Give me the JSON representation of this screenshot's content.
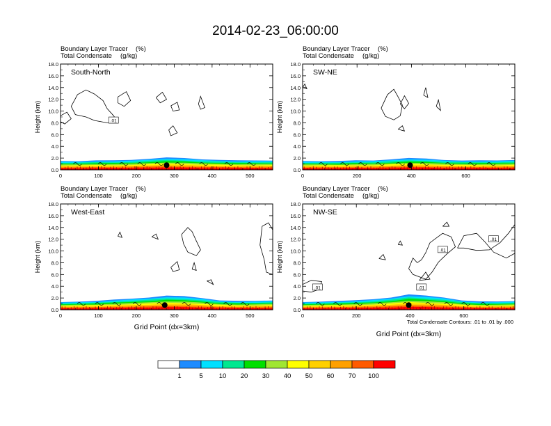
{
  "title": "2014-02-23_06:00:00",
  "chart_data": [
    {
      "type": "heatmap",
      "panel_label": "South-North",
      "subtitle_line1": "Boundary Layer Tracer",
      "subtitle_unit1": "(%)",
      "subtitle_line2": "Total Condensate",
      "subtitle_unit2": "(g/kg)",
      "ylabel": "Height (km)",
      "xlabel": "",
      "xlim": [
        0,
        560
      ],
      "ylim": [
        0,
        18
      ],
      "xticks": [
        0,
        100,
        200,
        300,
        400,
        500
      ],
      "yticks": [
        "0.0",
        "2.0",
        "4.0",
        "6.0",
        "8.0",
        "10.0",
        "12.0",
        "14.0",
        "16.0",
        "18.0"
      ],
      "tracer_top_km": [
        1.5,
        1.5,
        1.6,
        1.6,
        1.7,
        1.9,
        2.1,
        2.0,
        1.8,
        1.7,
        1.6,
        1.6,
        1.6
      ],
      "contour_labels": [
        ".01"
      ],
      "marker_x": 280
    },
    {
      "type": "heatmap",
      "panel_label": "SW-NE",
      "subtitle_line1": "Boundary Layer Tracer",
      "subtitle_unit1": "(%)",
      "subtitle_line2": "Total Condensate",
      "subtitle_unit2": "(g/kg)",
      "ylabel": "Height (km)",
      "xlabel": "",
      "xlim": [
        0,
        780
      ],
      "ylim": [
        0,
        18
      ],
      "xticks": [
        0,
        200,
        400,
        600
      ],
      "yticks": [
        "0.0",
        "2.0",
        "4.0",
        "6.0",
        "8.0",
        "10.0",
        "12.0",
        "14.0",
        "16.0",
        "18.0"
      ],
      "tracer_top_km": [
        1.5,
        1.5,
        1.5,
        1.6,
        1.6,
        1.8,
        2.0,
        1.9,
        1.7,
        1.6,
        1.6,
        1.6,
        1.7
      ],
      "contour_labels": [],
      "marker_x": 395
    },
    {
      "type": "heatmap",
      "panel_label": "West-East",
      "subtitle_line1": "Boundary Layer Tracer",
      "subtitle_unit1": "(%)",
      "subtitle_line2": "Total Condensate",
      "subtitle_unit2": "(g/kg)",
      "ylabel": "Height (km)",
      "xlabel": "Grid Point (dx=3km)",
      "xlim": [
        0,
        560
      ],
      "ylim": [
        0,
        18
      ],
      "xticks": [
        0,
        100,
        200,
        300,
        400,
        500
      ],
      "yticks": [
        "0.0",
        "2.0",
        "4.0",
        "6.0",
        "8.0",
        "10.0",
        "12.0",
        "14.0",
        "16.0",
        "18.0"
      ],
      "tracer_top_km": [
        1.3,
        1.4,
        1.5,
        1.7,
        1.9,
        2.1,
        2.4,
        2.3,
        2.0,
        1.6,
        1.5,
        1.5,
        1.6
      ],
      "contour_labels": [],
      "marker_x": 275
    },
    {
      "type": "heatmap",
      "panel_label": "NW-SE",
      "subtitle_line1": "Boundary Layer Tracer",
      "subtitle_unit1": "(%)",
      "subtitle_line2": "Total Condensate",
      "subtitle_unit2": "(g/kg)",
      "ylabel": "Height (km)",
      "xlabel": "Grid Point (dx=3km)",
      "xlim": [
        0,
        790
      ],
      "ylim": [
        0,
        18
      ],
      "xticks": [
        0,
        200,
        400,
        600
      ],
      "yticks": [
        "0.0",
        "2.0",
        "4.0",
        "6.0",
        "8.0",
        "10.0",
        "12.0",
        "14.0",
        "16.0",
        "18.0"
      ],
      "tracer_top_km": [
        1.3,
        1.4,
        1.5,
        1.6,
        1.8,
        2.1,
        2.6,
        2.4,
        2.1,
        1.6,
        1.4,
        1.4,
        1.5
      ],
      "contour_labels": [
        ".01",
        ".01",
        ".01",
        ".01"
      ],
      "marker_x": 395,
      "contour_note": "Total Condensate Contours: .01 to .01 by .000"
    }
  ],
  "colorbar": {
    "labels": [
      "1",
      "5",
      "10",
      "20",
      "30",
      "40",
      "50",
      "60",
      "70",
      "100"
    ],
    "colors": [
      "#ffffff",
      "#1e8cff",
      "#00e0ff",
      "#00e890",
      "#00e000",
      "#a0e632",
      "#ffff00",
      "#ffd000",
      "#ffa000",
      "#ff5a00",
      "#ff0000"
    ]
  }
}
